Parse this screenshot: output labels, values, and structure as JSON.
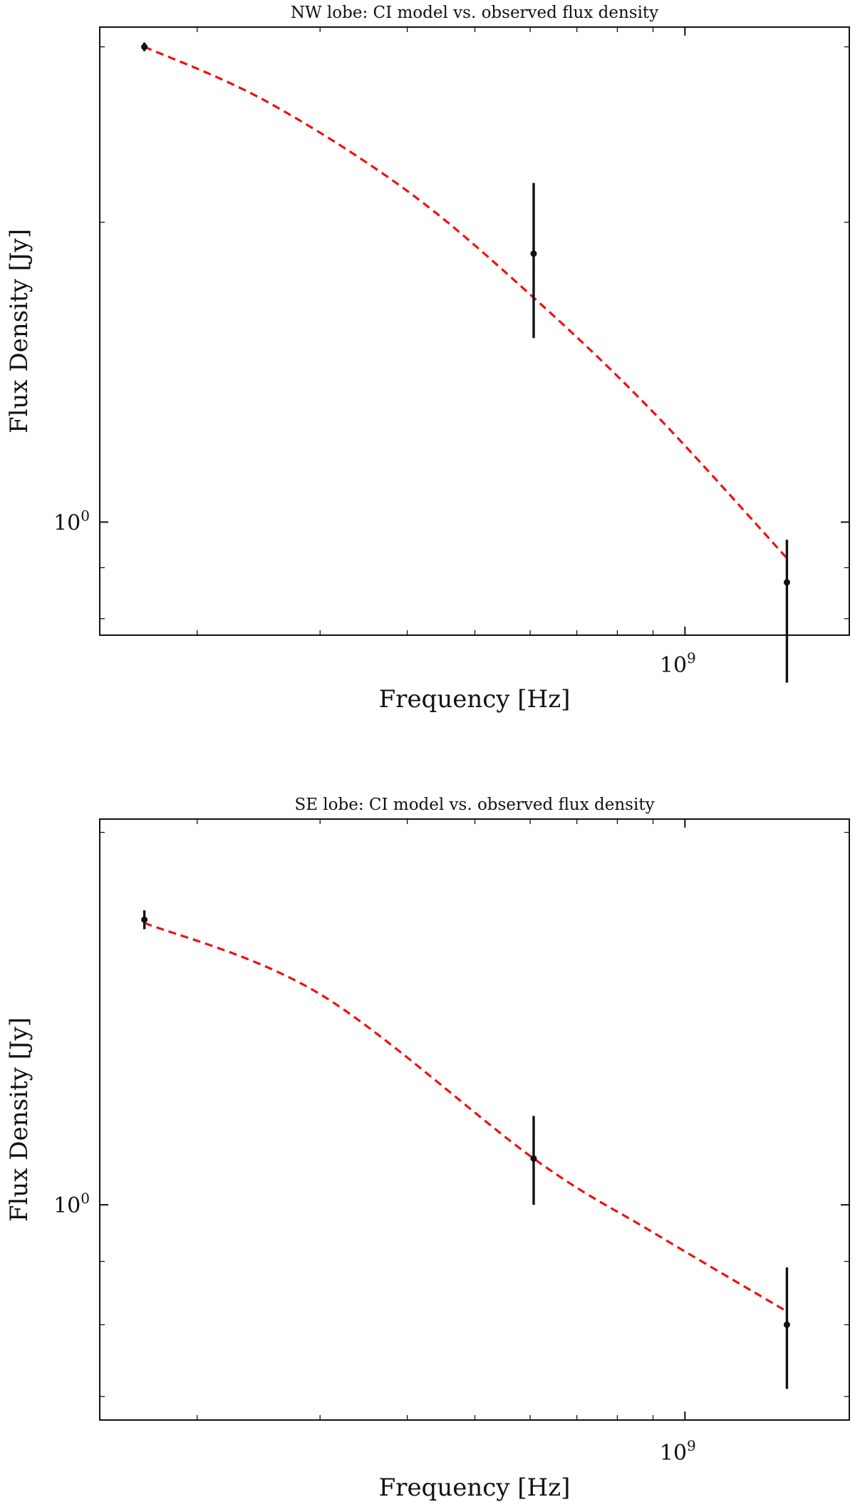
{
  "chart_data": [
    {
      "type": "scatter",
      "title": "NW lobe: CI model vs. observed flux density",
      "xlabel": "Frequency [Hz]",
      "ylabel": "Flux Density [Jy]",
      "xscale": "log",
      "yscale": "log",
      "xlim": [
        145000000,
        1720000000
      ],
      "ylim": [
        0.77,
        3.14
      ],
      "x_ticks": [
        {
          "value": 1000000000,
          "base": "10",
          "exp": "9"
        }
      ],
      "y_ticks": [
        {
          "value": 1,
          "base": "10",
          "exp": "0"
        }
      ],
      "grid": false,
      "observed": {
        "x": [
          168000000,
          607000000,
          1400000000
        ],
        "y": [
          3.0,
          1.86,
          0.87
        ],
        "yerr_low": [
          2.97,
          1.53,
          0.69
        ],
        "yerr_high": [
          3.03,
          2.19,
          0.96
        ]
      },
      "model": {
        "x": [
          168000000,
          250000000,
          400000000,
          607000000,
          900000000,
          1400000000
        ],
        "y": [
          3.0,
          2.65,
          2.15,
          1.68,
          1.29,
          0.92
        ]
      },
      "colors": {
        "observed": "#111111",
        "model": "#ee1111"
      }
    },
    {
      "type": "scatter",
      "title": "SE lobe: CI model vs. observed flux density",
      "xlabel": "Frequency [Hz]",
      "ylabel": "Flux Density [Jy]",
      "xscale": "log",
      "yscale": "log",
      "xlim": [
        145000000,
        1720000000
      ],
      "ylim": [
        0.67,
        2.05
      ],
      "x_ticks": [
        {
          "value": 1000000000,
          "base": "10",
          "exp": "9"
        }
      ],
      "y_ticks": [
        {
          "value": 1,
          "base": "10",
          "exp": "0"
        }
      ],
      "grid": false,
      "observed": {
        "x": [
          168000000,
          607000000,
          1400000000
        ],
        "y": [
          1.7,
          1.09,
          0.8
        ],
        "yerr_low": [
          1.67,
          1.0,
          0.71
        ],
        "yerr_high": [
          1.73,
          1.18,
          0.89
        ]
      },
      "model": {
        "x": [
          168000000,
          300000000,
          607000000,
          900000000,
          1400000000
        ],
        "y": [
          1.69,
          1.48,
          1.09,
          0.95,
          0.82
        ]
      },
      "colors": {
        "observed": "#111111",
        "model": "#ee1111"
      }
    }
  ]
}
